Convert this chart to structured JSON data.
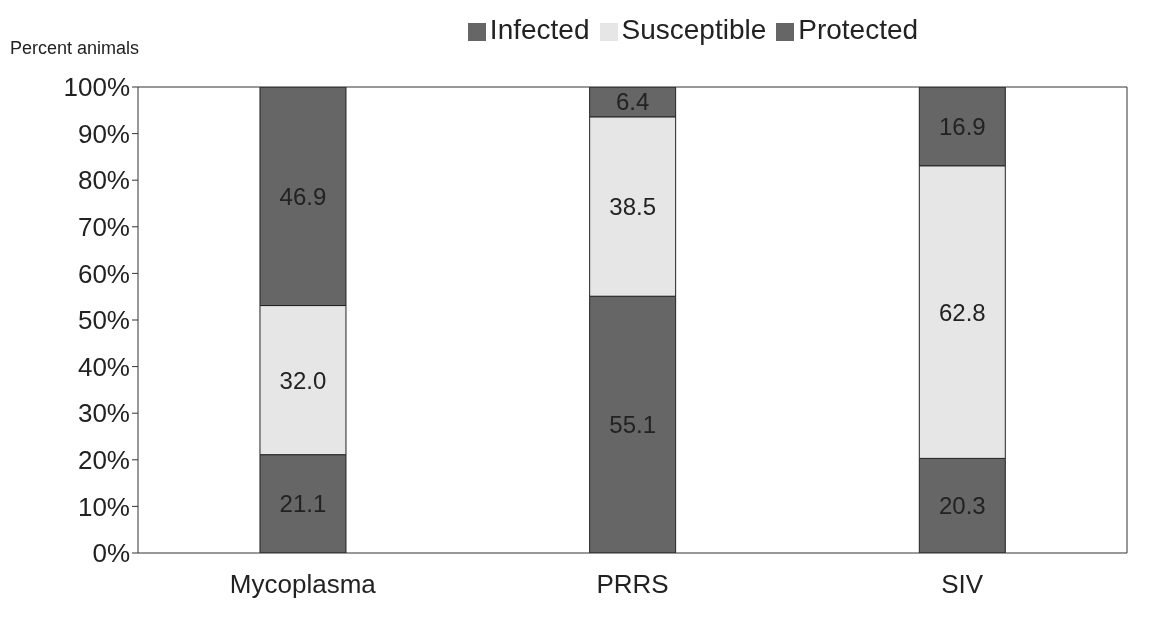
{
  "chart_data": {
    "type": "bar",
    "stacked": true,
    "ylabel": "Percent animals",
    "categories": [
      "Mycoplasma",
      "PRRS",
      "SIV"
    ],
    "series": [
      {
        "name": "Infected",
        "color": "#666666",
        "values": [
          21.1,
          55.1,
          20.3
        ],
        "value_labels": [
          "21.1",
          "55.1",
          "20.3"
        ]
      },
      {
        "name": "Susceptible",
        "color": "#e6e6e6",
        "values": [
          32.0,
          38.5,
          62.8
        ],
        "value_labels": [
          "32.0",
          "38.5",
          "62.8"
        ]
      },
      {
        "name": "Protected",
        "color": "#666666",
        "values": [
          46.9,
          6.4,
          16.9
        ],
        "value_labels": [
          "46.9",
          "6.4",
          "16.9"
        ]
      }
    ],
    "ylim": [
      0,
      100
    ],
    "yticks": [
      {
        "value": 0,
        "label": "0%"
      },
      {
        "value": 10,
        "label": "10%"
      },
      {
        "value": 20,
        "label": "20%"
      },
      {
        "value": 30,
        "label": "30%"
      },
      {
        "value": 40,
        "label": "40%"
      },
      {
        "value": 50,
        "label": "50%"
      },
      {
        "value": 60,
        "label": "60%"
      },
      {
        "value": 70,
        "label": "70%"
      },
      {
        "value": 80,
        "label": "80%"
      },
      {
        "value": 90,
        "label": "90%"
      },
      {
        "value": 100,
        "label": "100%"
      }
    ],
    "legend": "top",
    "grid": false
  }
}
